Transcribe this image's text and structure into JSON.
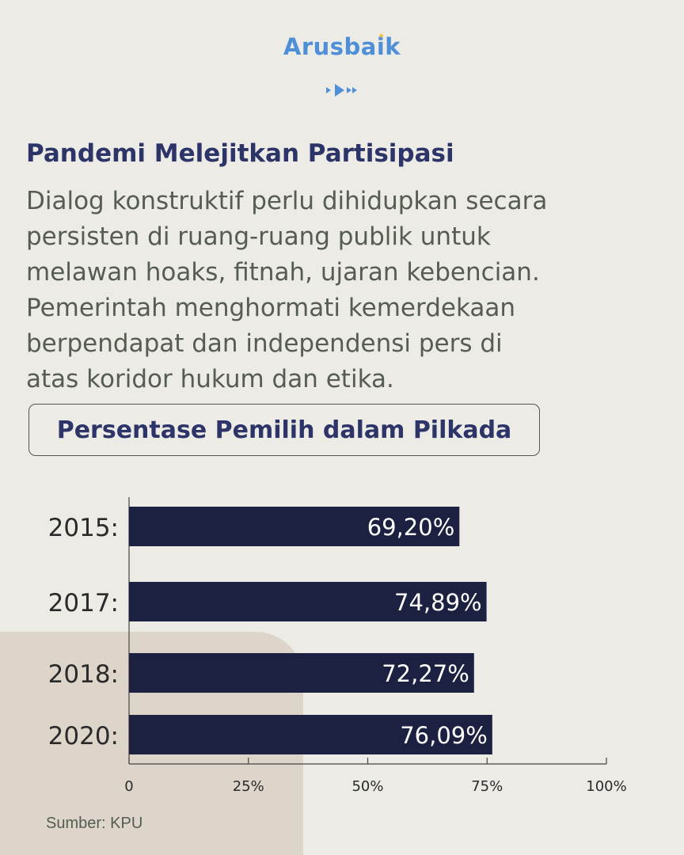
{
  "brand": {
    "name": "Arusbaik",
    "colors": {
      "logo": "#4f8fd7",
      "logo_star": "#f0c23c",
      "title": "#2c3468",
      "bar": "#1d2141"
    }
  },
  "headline": "Pandemi Melejitkan Partisipasi",
  "body_lines": [
    "Dialog konstruktif perlu dihidupkan secara",
    "persisten di ruang-ruang publik untuk",
    "melawan hoaks, fitnah, ujaran kebencian.",
    "Pemerintah menghormati kemerdekaan",
    "berpendapat dan independensi pers di",
    "atas koridor hukum dan etika."
  ],
  "chart_title": "Persentase Pemilih dalam Pilkada",
  "chart_data": {
    "type": "bar",
    "orientation": "horizontal",
    "title": "Persentase Pemilih dalam Pilkada",
    "categories": [
      "2015:",
      "2017:",
      "2018:",
      "2020:"
    ],
    "values": [
      69.2,
      74.89,
      72.27,
      76.09
    ],
    "value_labels": [
      "69,20%",
      "74,89%",
      "72,27%",
      "76,09%"
    ],
    "xlim": [
      0,
      100
    ],
    "xticks": [
      0,
      25,
      50,
      75,
      100
    ],
    "xtick_labels": [
      "0",
      "25%",
      "50%",
      "75%",
      "100%"
    ],
    "grid": false
  },
  "source": "Sumber: KPU"
}
